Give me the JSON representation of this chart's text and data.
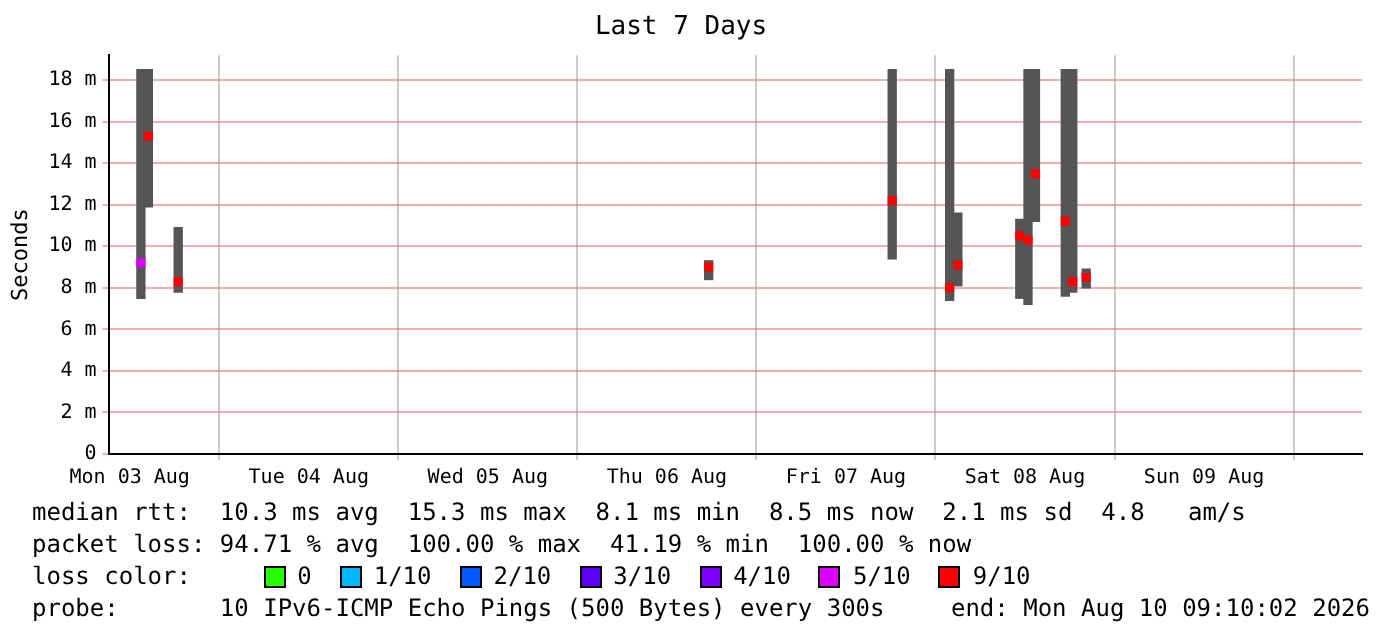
{
  "chart_data": {
    "type": "bar",
    "title": "Last 7 Days",
    "ylabel": "Seconds",
    "legend_title": "loss color:",
    "legend": "bottom",
    "grid": true,
    "marker": "square",
    "xlim": [
      "2026-08-03T09:10",
      "2026-08-10T09:10"
    ],
    "xticks": [
      {
        "value": "2026-08-03T12:00",
        "label": "Mon 03 Aug"
      },
      {
        "value": "2026-08-04T12:00",
        "label": "Tue 04 Aug"
      },
      {
        "value": "2026-08-05T12:00",
        "label": "Wed 05 Aug"
      },
      {
        "value": "2026-08-06T12:00",
        "label": "Thu 06 Aug"
      },
      {
        "value": "2026-08-07T12:00",
        "label": "Fri 07 Aug"
      },
      {
        "value": "2026-08-08T12:00",
        "label": "Sat 08 Aug"
      },
      {
        "value": "2026-08-09T12:00",
        "label": "Sun 09 Aug"
      }
    ],
    "ylim": [
      0,
      19.2
    ],
    "yticks": [
      0,
      {
        "value": 2,
        "label": "2 m"
      },
      {
        "value": 4,
        "label": "4 m"
      },
      {
        "value": 6,
        "label": "6 m"
      },
      {
        "value": 8,
        "label": "8 m"
      },
      {
        "value": 10,
        "label": "10 m"
      },
      {
        "value": 12,
        "label": "12 m"
      },
      {
        "value": 14,
        "label": "14 m"
      },
      {
        "value": 16,
        "label": "16 m"
      },
      {
        "value": 18,
        "label": "18 m"
      }
    ],
    "series": [
      {
        "color": "#555555",
        "x": [
          "2026-08-03T13:30",
          "2026-08-03T14:30",
          "2026-08-03T18:30",
          "2026-08-06T17:36",
          "2026-08-07T18:12",
          "2026-08-08T01:54",
          "2026-08-08T03:00",
          "2026-08-08T11:18",
          "2026-08-08T12:24",
          "2026-08-08T13:24",
          "2026-08-08T17:24",
          "2026-08-08T18:24",
          "2026-08-08T20:12"
        ],
        "base": [
          7.5,
          11.9,
          7.8,
          8.4,
          9.4,
          7.4,
          8.1,
          7.5,
          7.2,
          11.2,
          7.6,
          7.8,
          8.0
        ],
        "values": [
          11.0,
          6.6,
          3.1,
          0.9,
          9.1,
          11.1,
          3.5,
          3.8,
          11.3,
          7.3,
          10.9,
          10.7,
          0.9
        ]
      },
      {
        "type": "scatter",
        "name": "0",
        "color": "#26ff00"
      },
      {
        "type": "scatter",
        "name": "1/10",
        "color": "#00b8ff"
      },
      {
        "type": "scatter",
        "name": "2/10",
        "color": "#0059ff"
      },
      {
        "type": "scatter",
        "name": "3/10",
        "color": "#5e00ff"
      },
      {
        "type": "scatter",
        "name": "4/10",
        "color": "#7e00ff"
      },
      {
        "type": "scatter",
        "name": "5/10",
        "color": "#dd00ff",
        "x": [
          "2026-08-03T13:30"
        ],
        "values": [
          9.2
        ]
      },
      {
        "type": "scatter",
        "name": "9/10",
        "color": "#ff0000",
        "x": [
          "2026-08-03T14:30",
          "2026-08-03T18:30",
          "2026-08-06T17:36",
          "2026-08-07T18:12",
          "2026-08-08T01:54",
          "2026-08-08T03:00",
          "2026-08-08T11:18",
          "2026-08-08T12:24",
          "2026-08-08T13:24",
          "2026-08-08T17:24",
          "2026-08-08T18:24",
          "2026-08-08T20:12"
        ],
        "values": [
          15.3,
          8.3,
          9.0,
          12.2,
          8.0,
          9.1,
          10.5,
          10.3,
          13.5,
          11.2,
          8.3,
          8.5
        ]
      }
    ],
    "annotations": [
      "median rtt:  10.3 ms avg  15.3 ms max  8.1 ms min  8.5 ms now  2.1 ms sd  4.8   am/s",
      "packet loss: 94.71 % avg  100.00 % max  41.19 % min  100.00 % now",
      "probe:       10 IPv6-ICMP Echo Pings (500 Bytes) every 300s",
      "end: Mon Aug 10 09:10:02 2026"
    ]
  }
}
